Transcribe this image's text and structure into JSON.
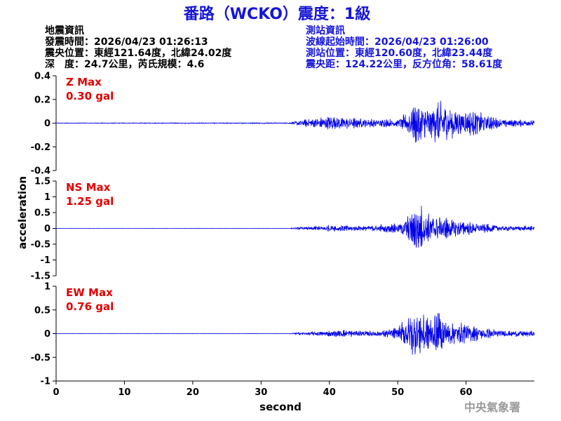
{
  "header": {
    "title": "番路（WCKO）震度：1級"
  },
  "event_info": {
    "heading": "地震資訊",
    "origin_time": "發震時間：2026/04/23 01:26:13",
    "epicenter": "震央位置：東經121.64度，北緯24.02度",
    "depth_magnitude": "深　度：24.7公里，芮氏規模：4.6"
  },
  "station_info": {
    "heading": "測站資訊",
    "waveform_start": "波線起始時間：2026/04/23 01:26:00",
    "station_location": "測站位置：東經120.60度，北緯23.44度",
    "distance_azimuth": "震央距：124.22公里，反方位角：58.61度"
  },
  "footer": {
    "agency": "中央氣象署"
  },
  "colors": {
    "title": "#1515d8",
    "trace": "#0000e6",
    "max_label": "#e00000"
  },
  "chart_data": {
    "type": "line",
    "xlabel": "second",
    "ylabel": "acceleration",
    "xlim": [
      0,
      70
    ],
    "xticks": [
      0,
      10,
      20,
      30,
      40,
      50,
      60
    ],
    "panels": [
      {
        "component": "Z",
        "max_label": "Z Max",
        "max_value": "0.30 gal",
        "ylim": [
          -0.4,
          0.4
        ],
        "yticks": [
          0.4,
          0.2,
          0,
          -0.2,
          -0.4
        ],
        "ytick_labels": [
          "0.4",
          "0.2",
          "0",
          "-0.2",
          "-0.4"
        ],
        "envelope": {
          "t": [
            0,
            34,
            35,
            38,
            40,
            45,
            50,
            51,
            52,
            53,
            54,
            55,
            56,
            57,
            58,
            60,
            62,
            65,
            70
          ],
          "amp": [
            0.004,
            0.006,
            0.025,
            0.06,
            0.085,
            0.05,
            0.05,
            0.1,
            0.2,
            0.27,
            0.18,
            0.2,
            0.3,
            0.22,
            0.18,
            0.14,
            0.13,
            0.05,
            0.035
          ]
        }
      },
      {
        "component": "NS",
        "max_label": "NS Max",
        "max_value": "1.25 gal",
        "ylim": [
          -1.5,
          1.5
        ],
        "yticks": [
          1.5,
          1,
          0.5,
          0,
          -0.5,
          -1,
          -1.5
        ],
        "ytick_labels": [
          "1.5",
          "1",
          "0.5",
          "0",
          "-0.5",
          "-1",
          "-1.5"
        ],
        "envelope": {
          "t": [
            0,
            34,
            35,
            40,
            45,
            50,
            51,
            52,
            53,
            54,
            55,
            56,
            57,
            58,
            60,
            62,
            65,
            70
          ],
          "amp": [
            0.002,
            0.004,
            0.04,
            0.14,
            0.12,
            0.2,
            0.4,
            0.85,
            1.25,
            0.65,
            0.7,
            0.5,
            0.55,
            0.4,
            0.3,
            0.22,
            0.12,
            0.1
          ]
        }
      },
      {
        "component": "EW",
        "max_label": "EW Max",
        "max_value": "0.76 gal",
        "ylim": [
          -1,
          1
        ],
        "yticks": [
          1,
          0.5,
          0,
          -0.5,
          -1
        ],
        "ytick_labels": [
          "1",
          "0.5",
          "0",
          "-0.5",
          "-1"
        ],
        "envelope": {
          "t": [
            0,
            34,
            35,
            38,
            42,
            45,
            48,
            50,
            51,
            52,
            53,
            54,
            55,
            56,
            57,
            58,
            60,
            62,
            65,
            70
          ],
          "amp": [
            0.002,
            0.004,
            0.03,
            0.06,
            0.12,
            0.08,
            0.1,
            0.18,
            0.45,
            0.65,
            0.76,
            0.6,
            0.55,
            0.6,
            0.45,
            0.35,
            0.3,
            0.2,
            0.1,
            0.08
          ]
        }
      }
    ]
  }
}
